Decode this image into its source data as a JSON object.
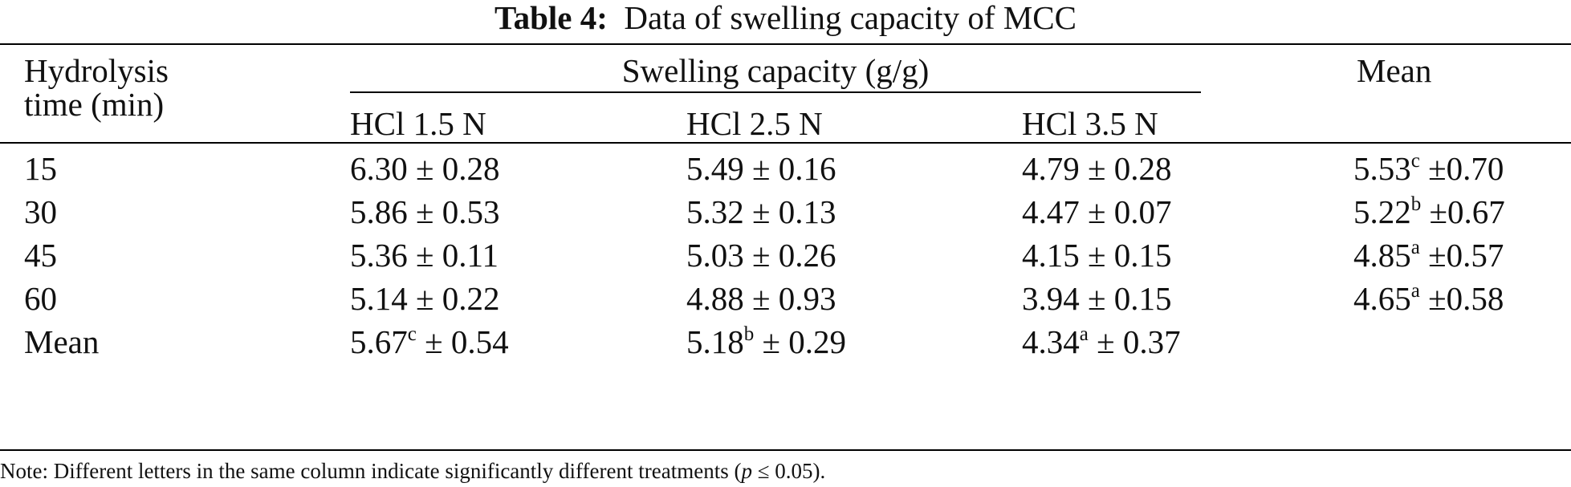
{
  "caption": {
    "label": "Table 4:",
    "text": "Data of swelling capacity of MCC"
  },
  "header": {
    "row_label_line1": "Hydrolysis",
    "row_label_line2": "time (min)",
    "group_label": "Swelling capacity (g/g)",
    "mean_label": "Mean",
    "columns": [
      "HCl 1.5 N",
      "HCl 2.5 N",
      "HCl 3.5 N"
    ]
  },
  "rows": [
    {
      "time": "15",
      "c1": "6.30 ± 0.28",
      "c2": "5.49 ± 0.16",
      "c3": "4.79 ± 0.28",
      "mean_val": "5.53",
      "mean_sup": "c",
      "mean_sd": " ±0.70"
    },
    {
      "time": "30",
      "c1": "5.86 ± 0.53",
      "c2": "5.32 ± 0.13",
      "c3": "4.47 ± 0.07",
      "mean_val": "5.22",
      "mean_sup": "b",
      "mean_sd": " ±0.67"
    },
    {
      "time": "45",
      "c1": "5.36 ± 0.11",
      "c2": "5.03 ± 0.26",
      "c3": "4.15 ± 0.15",
      "mean_val": "4.85",
      "mean_sup": "a",
      "mean_sd": " ±0.57"
    },
    {
      "time": "60",
      "c1": "5.14 ± 0.22",
      "c2": "4.88 ± 0.93",
      "c3": "3.94 ± 0.15",
      "mean_val": "4.65",
      "mean_sup": "a",
      "mean_sd": " ±0.58"
    }
  ],
  "mean_row": {
    "label": "Mean",
    "c1": {
      "val": "5.67",
      "sup": "c",
      "sd": " ± 0.54"
    },
    "c2": {
      "val": "5.18",
      "sup": "b",
      "sd": " ± 0.29"
    },
    "c3": {
      "val": "4.34",
      "sup": "a",
      "sd": " ± 0.37"
    }
  },
  "note": {
    "before": "Note: Different letters in the same column indicate significantly different treatments (",
    "italic": "p",
    "after": " ≤ 0.05)."
  }
}
